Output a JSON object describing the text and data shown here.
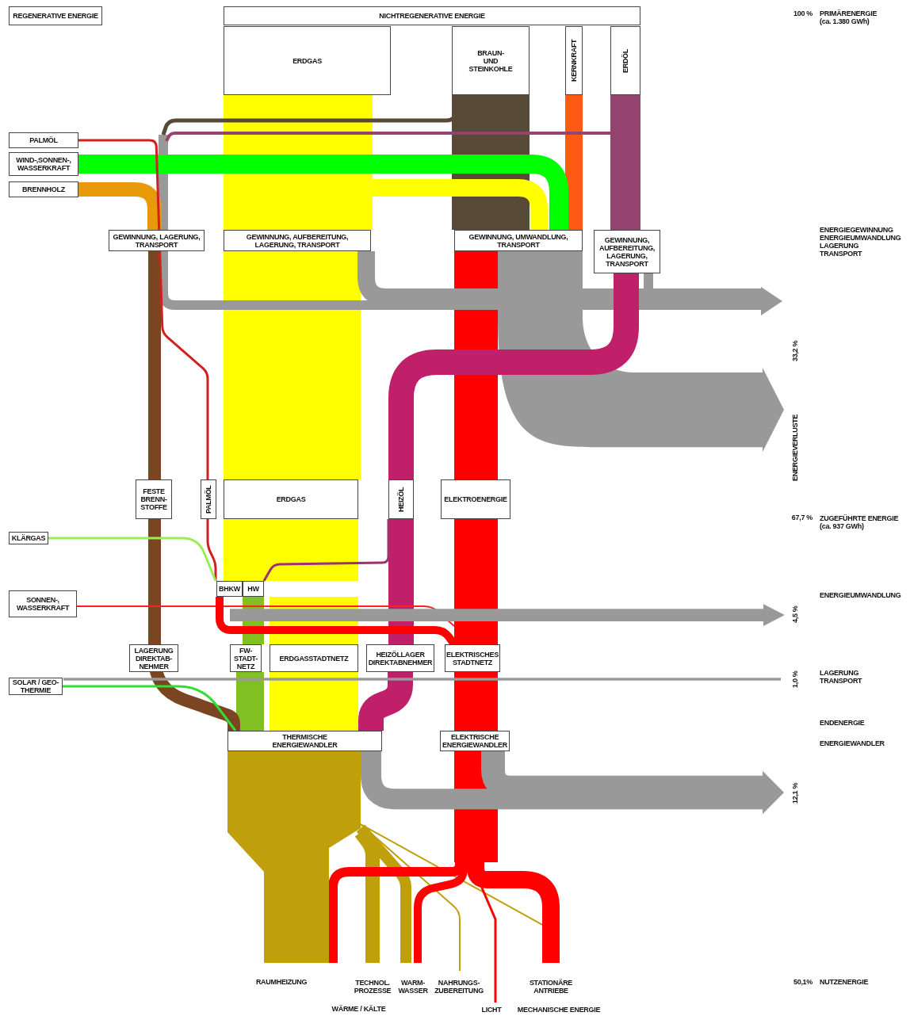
{
  "chart_data": {
    "type": "other",
    "categories": [
      "PRIMÄRENERGIE\n(ca. 1.380 GWh)",
      "ENERGIEVERLUSTE",
      "ZUGEFÜHRTE ENERGIE\n(ca. 937 GWh)",
      "ENERGIEUMWANDLUNG",
      "LAGERUNG\nTRANSPORT",
      "ENERGIEWANDLER",
      "NUTZENERGIE"
    ],
    "values": [
      100,
      33.2,
      67.7,
      4.5,
      1.0,
      12.1,
      50.1
    ],
    "value_labels": [
      "100 %",
      "33,2 %",
      "67,7 %",
      "4,5 %",
      "1,0 %",
      "12,1 %",
      "50,1%"
    ],
    "annotations": [
      "REGENERATIVE ENERGIE",
      "NICHTREGENERATIVE ENERGIE",
      "ERDGAS",
      "BRAUN-\nUND\nSTEINKOHLE",
      "KERNKRAFT",
      "ERDÖL",
      "PALMÖL",
      "WIND-,SONNEN-,\nWASSERKRAFT",
      "BRENNHOLZ",
      "GEWINNUNG, LAGERUNG,\nTRANSPORT",
      "GEWINNUNG, AUFBEREITUNG,\nLAGERUNG, TRANSPORT",
      "GEWINNUNG, UMWANDLUNG,\nTRANSPORT",
      "GEWINNUNG,\nAUFBEREITUNG,\nLAGERUNG,\nTRANSPORT",
      "FESTE\nBRENN-\nSTOFFE",
      "PALMÖL",
      "ERDGAS",
      "HEIZÖL",
      "ELEKTROENERGIE",
      "KLÄRGAS",
      "SONNEN-,\nWASSERKRAFT",
      "BHKW",
      "HW",
      "LAGERUNG\nDIREKTAB-\nNEHMER",
      "FW-\nSTADT-\nNETZ",
      "ERDGASSTADTNETZ",
      "HEIZÖLLAGER\nDIREKTABNEHMER",
      "ELEKTRISCHES\nSTADTNETZ",
      "SOLAR / GEO-\nTHERMIE",
      "THERMISCHE\nENERGIEWANDLER",
      "ELEKTRISCHE\nENERGIEWANDLER",
      "RAUMHEIZUNG",
      "TECHNOL.\nPROZESSE",
      "WARM-\nWASSER",
      "NAHRUNGS-\nZUBEREITUNG",
      "STATIONÄRE\nANTRIEBE",
      "WÄRME / KÄLTE",
      "LICHT",
      "MECHANISCHE ENERGIE",
      "ENERGIEGEWINNUNG\nENERGIEUMWANDLUNG\nLAGERUNG\nTRANSPORT",
      "ENDENERGIE"
    ]
  }
}
